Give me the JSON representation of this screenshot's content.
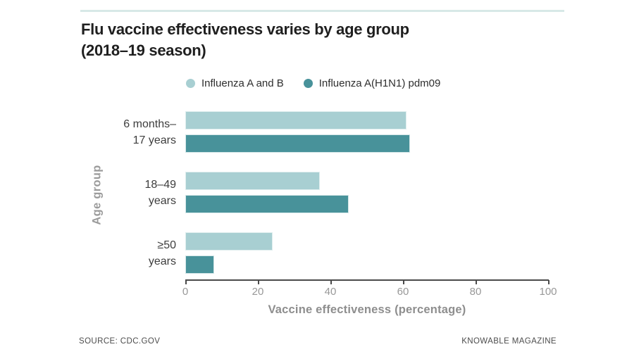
{
  "page": {
    "background": "#ffffff",
    "accent_line_color": "#d7e9e7"
  },
  "title": {
    "line1": "Flu vaccine effectiveness varies by age group",
    "line2": "(2018–19 season)"
  },
  "chart_data": {
    "type": "bar",
    "orientation": "horizontal",
    "title": "Flu vaccine effectiveness varies by age group (2018–19 season)",
    "categories": [
      [
        "6 months–",
        "17 years"
      ],
      [
        "18–49",
        "years"
      ],
      [
        "≥50",
        "years"
      ]
    ],
    "series": [
      {
        "name": "Influenza A and B",
        "color": "#a8cfd2",
        "values": [
          61,
          37,
          24
        ]
      },
      {
        "name": "Influenza A(H1N1) pdm09",
        "color": "#48929a",
        "values": [
          62,
          45,
          8
        ]
      }
    ],
    "xlabel": "Vaccine effectiveness (percentage)",
    "ylabel": "Age group",
    "xlim": [
      0,
      100
    ],
    "xticks": [
      0,
      20,
      40,
      60,
      80,
      100
    ],
    "grid": false,
    "legend_position": "top"
  },
  "footer": {
    "source": "SOURCE: CDC.GOV",
    "credit": "KNOWABLE MAGAZINE"
  }
}
